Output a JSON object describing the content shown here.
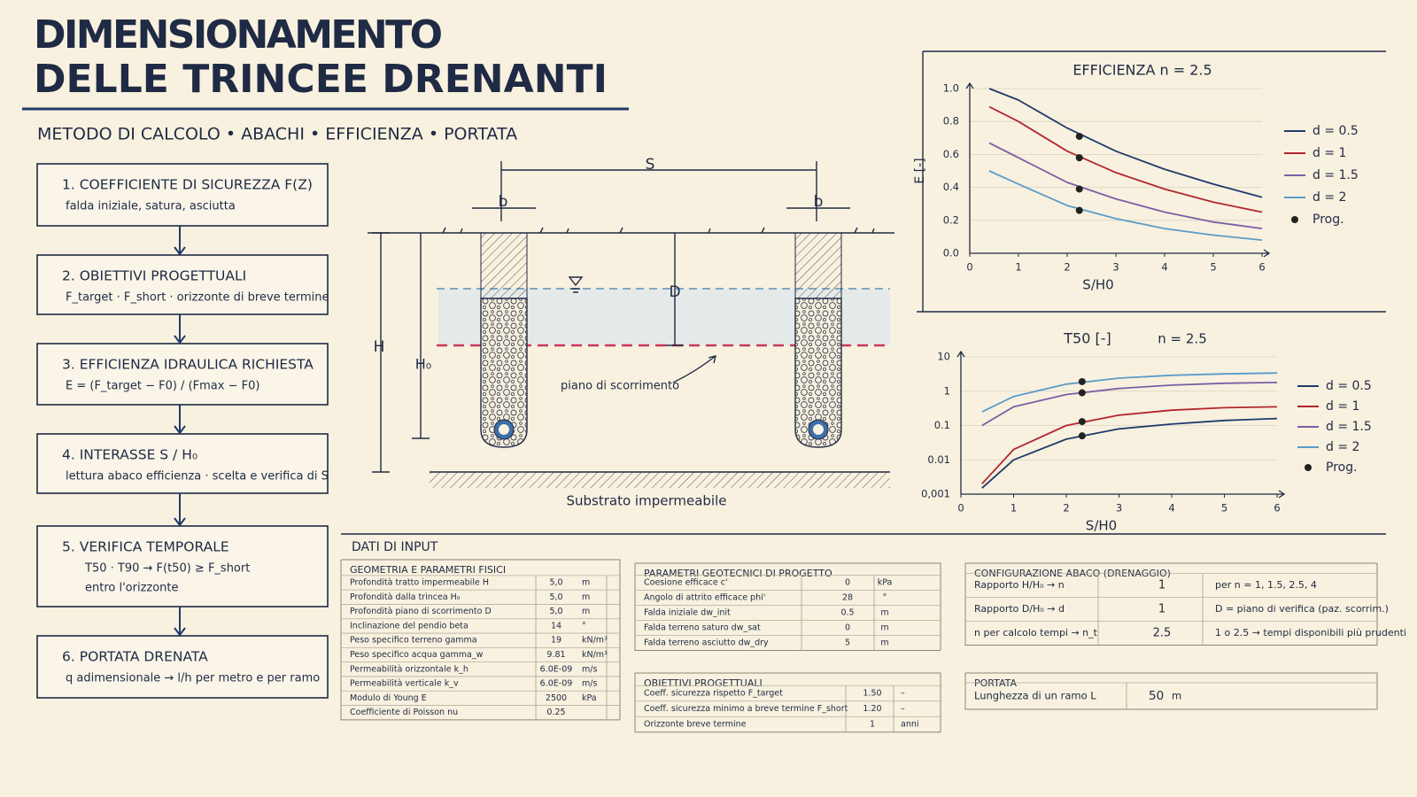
{
  "header": {
    "title": [
      "DIMENSIONAMENTO",
      "DELLE TRINCEE DRENANTI"
    ],
    "subtitle": "METODO DI CALCOLO • ABACHI • EFFICIENZA • PORTATA"
  },
  "steps": [
    {
      "title": "1. COEFFICIENTE DI SICUREZZA F(Z)",
      "text": [
        "falda iniziale, satura, asciutta"
      ]
    },
    {
      "title": "2. OBIETTIVI PROGETTUALI",
      "text": [
        "F_target · F_short · orizzonte di breve termine"
      ]
    },
    {
      "title": "3. EFFICIENZA IDRAULICA RICHIESTA",
      "text": [
        "E = (F_target − F0) / (Fmax − F0)"
      ]
    },
    {
      "title": "4. INTERASSE S / H₀",
      "text": [
        "lettura abaco efficienza · scelta e verifica di S"
      ]
    },
    {
      "title": "5. VERIFICA TEMPORALE",
      "text": [
        "T50 · T90 → F(t50) ≥ F_short",
        "entro l'orizzonte"
      ]
    },
    {
      "title": "6. PORTATA DRENATA",
      "text": [
        "q adimensionale → l/h per metro e per ramo"
      ]
    }
  ],
  "section": {
    "s": "S",
    "b_left": "b",
    "b_right": "b",
    "d": "D",
    "h": "H",
    "h0": "H₀",
    "slip": "piano di scorrimento",
    "substrate": "Substrato impermeabile"
  },
  "chart_data": [
    {
      "type": "line",
      "title": "EFFICIENZA  n = 2.5",
      "ylabel": "E [-]",
      "xlabel": "S/H0",
      "xlim": [
        0,
        6
      ],
      "xticks": [
        0,
        1,
        2,
        3,
        4,
        5,
        6
      ],
      "ylim": [
        0,
        1
      ],
      "yticks": [
        {
          "value": 0,
          "label": "0.0"
        },
        0.2,
        0.4,
        0.6,
        0.8,
        {
          "value": 1,
          "label": "1.0"
        }
      ],
      "legend": "right",
      "series": [
        {
          "name": "d = 0.5",
          "color": "#1f3a6b",
          "x": [
            0.4,
            1,
            2,
            3,
            4,
            5,
            6
          ],
          "values": [
            1.0,
            0.93,
            0.76,
            0.62,
            0.51,
            0.42,
            0.34
          ]
        },
        {
          "name": "d = 1",
          "color": "#b3262d",
          "x": [
            0.4,
            1,
            2,
            3,
            4,
            5,
            6
          ],
          "values": [
            0.89,
            0.8,
            0.62,
            0.49,
            0.39,
            0.31,
            0.25
          ]
        },
        {
          "name": "d = 1.5",
          "color": "#7b5ea7",
          "x": [
            0.4,
            1,
            2,
            3,
            4,
            5,
            6
          ],
          "values": [
            0.67,
            0.58,
            0.43,
            0.33,
            0.25,
            0.19,
            0.15
          ]
        },
        {
          "name": "d = 2",
          "color": "#5a9bc9",
          "x": [
            0.4,
            1,
            2,
            3,
            4,
            5,
            6
          ],
          "values": [
            0.5,
            0.42,
            0.29,
            0.21,
            0.15,
            0.11,
            0.08
          ]
        },
        {
          "name": "Prog.",
          "color": "#222222",
          "style": "markers",
          "x": [
            2.25,
            2.25,
            2.25,
            2.25
          ],
          "values": [
            0.71,
            0.58,
            0.39,
            0.26
          ]
        }
      ]
    },
    {
      "type": "line",
      "title": "T50 [-]",
      "subtitle": "n = 2.5",
      "xlabel": "S/H0",
      "log_y": true,
      "xlim": [
        0,
        6
      ],
      "xticks": [
        0,
        1,
        2,
        3,
        4,
        5,
        6
      ],
      "ylim": [
        0.001,
        10
      ],
      "yticks": [
        {
          "value": 0.001,
          "label": "0,001"
        },
        0.01,
        0.1,
        1,
        10
      ],
      "legend": "right",
      "series": [
        {
          "name": "d = 0.5",
          "color": "#1f3a6b",
          "x": [
            0.4,
            1,
            2,
            3,
            4,
            5,
            6
          ],
          "values": [
            0.0015,
            0.01,
            0.04,
            0.08,
            0.11,
            0.14,
            0.16
          ]
        },
        {
          "name": "d = 1",
          "color": "#b3262d",
          "x": [
            0.4,
            1,
            2,
            3,
            4,
            5,
            6
          ],
          "values": [
            0.002,
            0.02,
            0.1,
            0.2,
            0.28,
            0.33,
            0.35
          ]
        },
        {
          "name": "d = 1.5",
          "color": "#7b5ea7",
          "x": [
            0.4,
            1,
            2,
            3,
            4,
            5,
            6
          ],
          "values": [
            0.1,
            0.35,
            0.8,
            1.2,
            1.5,
            1.7,
            1.8
          ]
        },
        {
          "name": "d = 2",
          "color": "#5a9bc9",
          "x": [
            0.4,
            1,
            2,
            3,
            4,
            5,
            6
          ],
          "values": [
            0.25,
            0.7,
            1.6,
            2.4,
            2.9,
            3.2,
            3.4
          ]
        },
        {
          "name": "Prog.",
          "color": "#222222",
          "style": "markers",
          "x": [
            2.3,
            2.3,
            2.3,
            2.3
          ],
          "values": [
            0.05,
            0.13,
            0.9,
            1.9
          ]
        }
      ]
    }
  ],
  "input": {
    "title": "DATI DI INPUT",
    "tables": [
      {
        "title": "GEOMETRIA E PARAMETRI FISICI",
        "rows": [
          [
            "Profondità tratto impermeabile H",
            "5,0",
            "m"
          ],
          [
            "Profondità dalla trincea H₀",
            "5,0",
            "m"
          ],
          [
            "Profondità piano di scorrimento D",
            "5,0",
            "m"
          ],
          [
            "Inclinazione del pendio beta",
            "14",
            "°"
          ],
          [
            "Peso specifico terreno gamma",
            "19",
            "kN/m³"
          ],
          [
            "Peso specifico acqua gamma_w",
            "9.81",
            "kN/m³"
          ],
          [
            "Permeabilità orizzontale k_h",
            "6.0E-09",
            "m/s"
          ],
          [
            "Permeabilità verticale k_v",
            "6.0E-09",
            "m/s"
          ],
          [
            "Modulo di Young E",
            "2500",
            "kPa"
          ],
          [
            "Coefficiente di Poisson nu",
            "0.25"
          ]
        ]
      },
      {
        "title": "PARAMETRI GEOTECNICI DI PROGETTO",
        "rows": [
          [
            "Coesione efficace c'",
            "0",
            "kPa"
          ],
          [
            "Angolo di attrito efficace phi'",
            "28",
            "°"
          ],
          [
            "Falda iniziale dw_init",
            "0.5",
            "m"
          ],
          [
            "Falda terreno saturo dw_sat",
            "0",
            "m"
          ],
          [
            "Falda terreno asciutto dw_dry",
            "5",
            "m"
          ]
        ]
      },
      {
        "title": "OBIETTIVI PROGETTUALI",
        "rows": [
          [
            "Coeff. sicurezza rispetto F_target",
            "1.50",
            "–"
          ],
          [
            "Coeff. sicurezza minimo a breve termine F_short",
            "1.20",
            "–"
          ],
          [
            "Orizzonte breve termine",
            "1",
            "anni"
          ]
        ]
      },
      {
        "title": "CONFIGURAZIONE ABACO (DRENAGGIO)",
        "rows": [
          [
            "Rapporto H/H₀ → n",
            "1",
            "per n = 1, 1.5, 2.5, 4"
          ],
          [
            "Rapporto D/H₀ → d",
            "1",
            "D = piano di verifica (paz. scorrim.)"
          ],
          [
            "n per calcolo tempi → n_t",
            "2.5",
            "1 o 2.5 → tempi disponibili più prudenti"
          ]
        ]
      },
      {
        "title": "PORTATA",
        "rows": [
          [
            "Lunghezza di un ramo L",
            "50",
            "m"
          ]
        ]
      }
    ]
  }
}
